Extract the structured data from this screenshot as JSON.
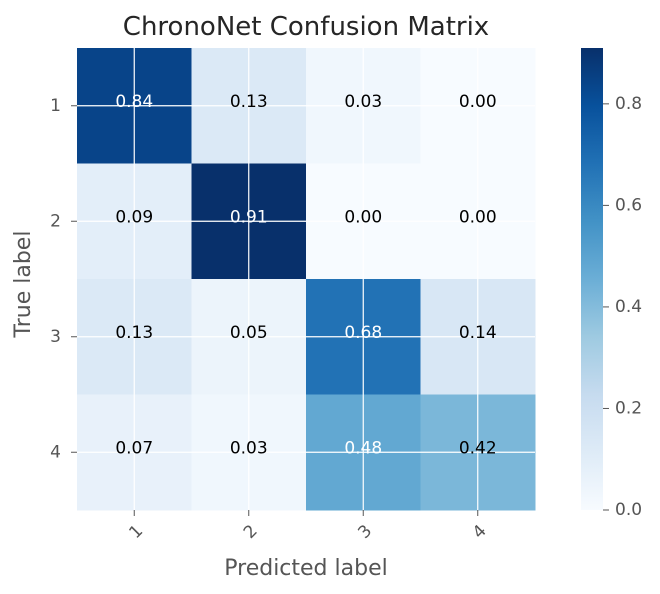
{
  "chart_data": {
    "type": "heatmap",
    "title": "ChronoNet Confusion Matrix",
    "xlabel": "Predicted label",
    "ylabel": "True label",
    "x_categories": [
      "1",
      "2",
      "3",
      "4"
    ],
    "y_categories": [
      "1",
      "2",
      "3",
      "4"
    ],
    "values": [
      [
        0.84,
        0.13,
        0.03,
        0.0
      ],
      [
        0.09,
        0.91,
        0.0,
        0.0
      ],
      [
        0.13,
        0.05,
        0.68,
        0.14
      ],
      [
        0.07,
        0.03,
        0.48,
        0.42
      ]
    ],
    "cell_labels": [
      [
        "0.84",
        "0.13",
        "0.03",
        "0.00"
      ],
      [
        "0.09",
        "0.91",
        "0.00",
        "0.00"
      ],
      [
        "0.13",
        "0.05",
        "0.68",
        "0.14"
      ],
      [
        "0.07",
        "0.03",
        "0.48",
        "0.42"
      ]
    ],
    "colormap": "Blues",
    "vmin": 0.0,
    "vmax": 0.91,
    "colorbar": {
      "ticks": [
        0.0,
        0.2,
        0.4,
        0.6,
        0.8
      ],
      "tick_labels": [
        "0.0",
        "0.2",
        "0.4",
        "0.6",
        "0.8"
      ]
    },
    "grid": true,
    "x_tick_rotation": "45 degrees"
  }
}
